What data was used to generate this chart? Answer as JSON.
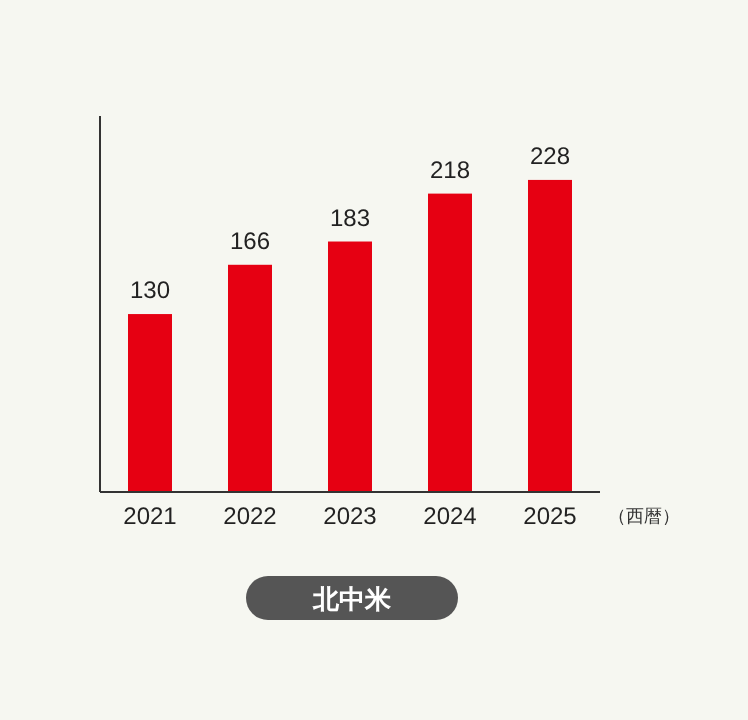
{
  "chart_data": {
    "type": "bar",
    "title": "北中米",
    "xlabel": "（西暦）",
    "categories": [
      "2021",
      "2022",
      "2023",
      "2024",
      "2025"
    ],
    "series": [
      {
        "color": "#e60012",
        "values": [
          130,
          166,
          183,
          218,
          228
        ]
      }
    ],
    "data_labels": true,
    "tick_labels": "x"
  }
}
